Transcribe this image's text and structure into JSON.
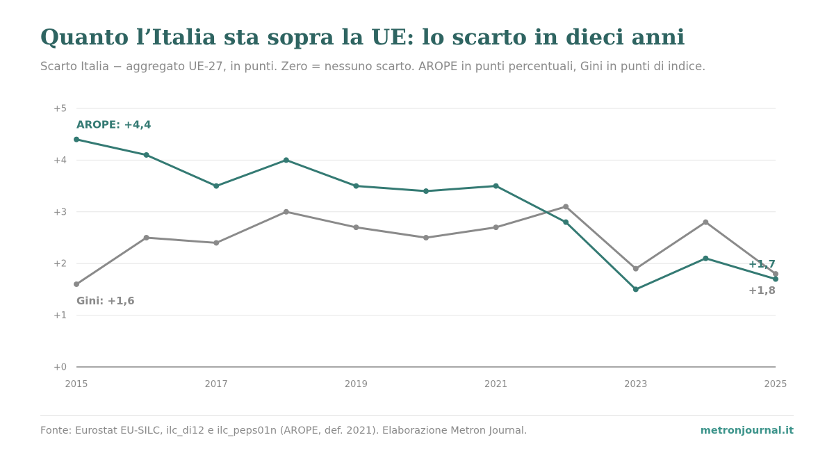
{
  "header": {
    "title": "Quanto l’Italia sta sopra la UE: lo scarto in dieci anni",
    "subtitle": "Scarto Italia − aggregato UE-27, in punti. Zero = nessuno scarto. AROPE in punti percentuali, Gini in punti di indice."
  },
  "footer": {
    "source": "Fonte: Eurostat EU-SILC, ilc_di12 e ilc_peps01n (AROPE, def. 2021). Elaborazione Metron Journal.",
    "brand": "metronjournal.it"
  },
  "chart_data": {
    "type": "line",
    "x": [
      2015,
      2016,
      2017,
      2018,
      2019,
      2020,
      2021,
      2022,
      2023,
      2024,
      2025
    ],
    "x_tick_labels": [
      "2015",
      "2017",
      "2019",
      "2021",
      "2023",
      "2025"
    ],
    "y_tick_labels": [
      "+0",
      "+1",
      "+2",
      "+3",
      "+4",
      "+5"
    ],
    "ylim": [
      0,
      5
    ],
    "grid": true,
    "series": [
      {
        "key": "arope",
        "color": "#347a73",
        "values": [
          4.4,
          4.1,
          3.5,
          4.0,
          3.5,
          3.4,
          3.5,
          2.8,
          1.5,
          2.1,
          1.7
        ],
        "start_label": "AROPE: +4,4",
        "end_label": "+1,7"
      },
      {
        "key": "gini",
        "color": "#8a8a8a",
        "values": [
          1.6,
          2.5,
          2.4,
          3.0,
          2.7,
          2.5,
          2.7,
          3.1,
          1.9,
          2.8,
          1.8
        ],
        "start_label": "Gini: +1,6",
        "end_label": "+1,8"
      }
    ]
  }
}
